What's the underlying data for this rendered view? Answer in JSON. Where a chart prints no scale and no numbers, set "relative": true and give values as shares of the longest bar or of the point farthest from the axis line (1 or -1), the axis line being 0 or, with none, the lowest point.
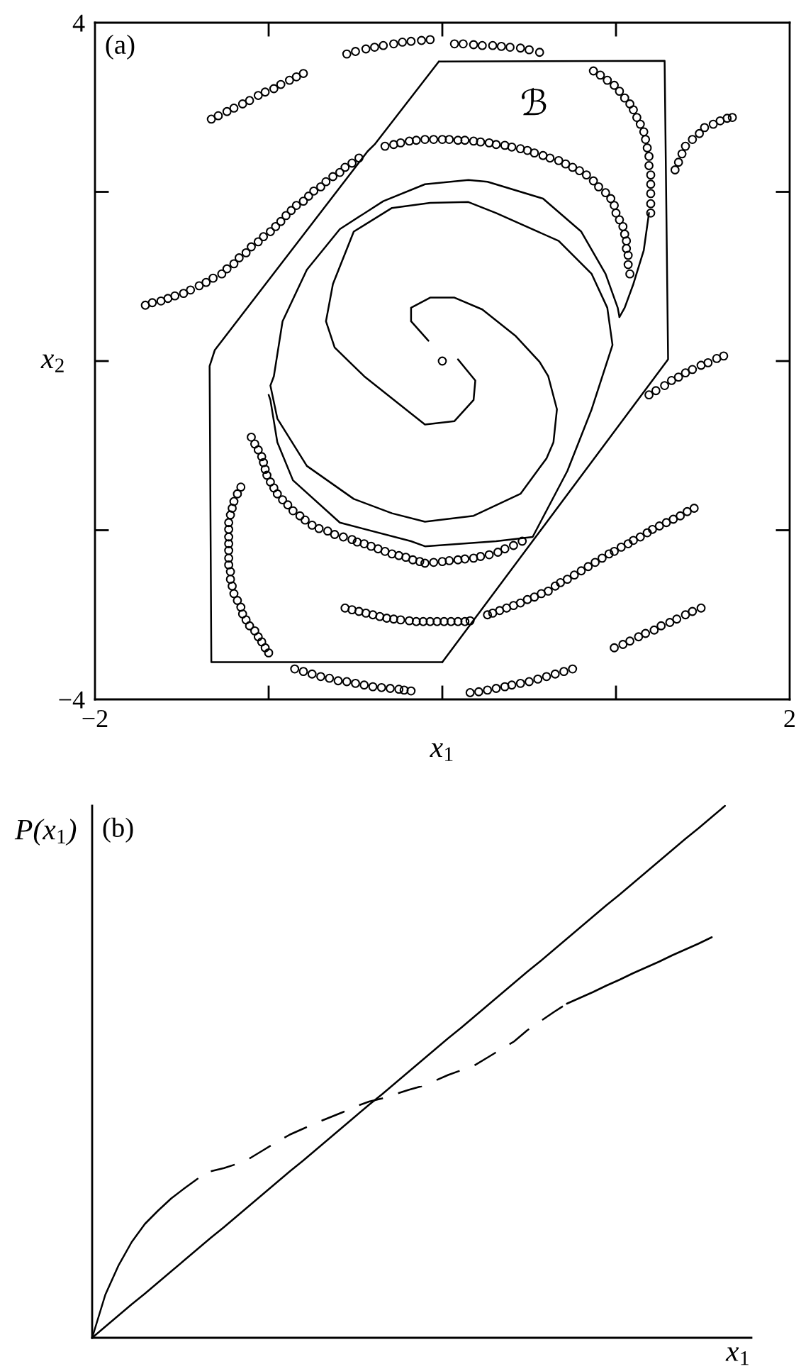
{
  "chart_data": [
    {
      "type": "line",
      "xlabel": "x$_{1}$",
      "ylabel": "x$_{2}$",
      "annotations": [
        "(a)",
        "ℬ"
      ],
      "xlim": [
        -2,
        2
      ],
      "xticks": [
        {
          "value": -2,
          "label": "−2"
        },
        {
          "value": -1,
          "label": null
        },
        {
          "value": 0,
          "label": null
        },
        {
          "value": 1,
          "label": null
        },
        2
      ],
      "ylim": [
        -4,
        4
      ],
      "yticks": [
        {
          "value": -4,
          "label": "−4"
        },
        {
          "value": -2,
          "label": null
        },
        {
          "value": 0,
          "label": null
        },
        {
          "value": 2,
          "label": null
        },
        4
      ],
      "grid": false,
      "line_style": "solid",
      "series": [
        {
          "color": "#000000",
          "x": [
            -0.02,
            1.28,
            1.3,
            0.0
          ],
          "values": [
            3.54,
            3.55,
            0.02,
            -3.56
          ]
        },
        {
          "color": "#000000",
          "x": [
            0.0,
            -1.33,
            -1.34,
            -1.31,
            -0.43,
            -0.39,
            -0.02
          ],
          "values": [
            -3.56,
            -3.56,
            -0.06,
            0.13,
            2.48,
            2.56,
            3.54
          ]
        },
        {
          "color": "#000000",
          "x": [
            -0.08,
            -0.18,
            -0.18,
            -0.07,
            0.07,
            0.23,
            0.42,
            0.56,
            0.61,
            0.66,
            0.64,
            0.6,
            0.45,
            0.18,
            -0.1,
            -0.29,
            -0.51,
            -0.78,
            -0.95,
            -0.99,
            -0.97,
            -0.92,
            -0.78,
            -0.59,
            -0.34,
            -0.1,
            0.15,
            0.26,
            0.58,
            0.8,
            0.94,
            1.01,
            1.02
          ],
          "values": [
            0.24,
            0.47,
            0.63,
            0.75,
            0.75,
            0.61,
            0.3,
            -0.01,
            -0.18,
            -0.57,
            -0.96,
            -1.15,
            -1.57,
            -1.83,
            -1.9,
            -1.8,
            -1.63,
            -1.24,
            -0.68,
            -0.29,
            -0.18,
            0.47,
            1.08,
            1.56,
            1.89,
            2.09,
            2.14,
            2.12,
            1.92,
            1.53,
            1.03,
            0.63,
            0.52
          ]
        },
        {
          "color": "#000000",
          "x": [
            0.09,
            0.19,
            0.18,
            0.07,
            -0.1,
            -0.18,
            -0.45,
            -0.62,
            -0.67,
            -0.63,
            -0.51,
            -0.29,
            -0.07,
            0.15,
            0.31,
            0.67,
            0.86,
            0.95,
            0.98,
            0.86,
            0.72,
            0.52,
            0.31,
            -0.1,
            -0.18,
            -0.59,
            -0.86,
            -0.95,
            -0.99,
            -1.0
          ],
          "values": [
            0.02,
            -0.23,
            -0.46,
            -0.71,
            -0.75,
            -0.62,
            -0.18,
            0.16,
            0.47,
            0.91,
            1.53,
            1.81,
            1.87,
            1.88,
            1.75,
            1.42,
            1.03,
            0.63,
            0.19,
            -0.57,
            -1.3,
            -2.08,
            -2.13,
            -2.19,
            -2.13,
            -1.91,
            -1.41,
            -0.96,
            -0.46,
            -0.4
          ]
        },
        {
          "color": "#000000",
          "x": [
            1.19,
            1.16,
            1.1,
            1.05,
            1.02
          ],
          "values": [
            1.75,
            1.31,
            0.91,
            0.63,
            0.52
          ]
        },
        {
          "type": "scatter",
          "marker": "circle",
          "color": "#000000",
          "x": [
            0
          ],
          "values": [
            0
          ]
        },
        {
          "type": "scatter",
          "marker": "circle",
          "color": "#000000",
          "x": [
            -1.33,
            -1.29,
            -1.24,
            -1.2,
            -1.15,
            -1.11,
            -1.06,
            -1.02,
            -0.97,
            -0.93,
            -0.88,
            -0.84,
            -0.8,
            -0.55,
            -0.5,
            -0.44,
            -0.39,
            -0.34,
            -0.28,
            -0.23,
            -0.18,
            -0.12,
            -0.07,
            0.07,
            0.12,
            0.18,
            0.23,
            0.29,
            0.34,
            0.39,
            0.45,
            0.5,
            0.56
          ],
          "values": [
            2.86,
            2.9,
            2.95,
            2.99,
            3.04,
            3.08,
            3.14,
            3.18,
            3.22,
            3.27,
            3.32,
            3.36,
            3.4,
            3.63,
            3.66,
            3.69,
            3.71,
            3.73,
            3.75,
            3.77,
            3.78,
            3.79,
            3.8,
            3.75,
            3.75,
            3.74,
            3.73,
            3.73,
            3.72,
            3.71,
            3.7,
            3.68,
            3.65
          ]
        },
        {
          "type": "scatter",
          "marker": "circle",
          "color": "#000000",
          "x": [
            -0.33,
            -0.28,
            -0.24,
            -0.19,
            -0.15,
            -0.1,
            -0.05,
            0.0,
            0.04,
            0.09,
            0.13,
            0.18,
            0.22,
            0.27,
            0.31,
            0.36,
            0.4,
            0.45,
            0.49,
            0.53,
            0.58,
            0.62,
            0.67,
            0.71,
            0.75,
            0.79,
            0.83,
            0.87,
            0.9,
            0.94,
            0.97,
            0.99,
            1.0,
            1.02,
            1.04,
            1.05,
            1.06,
            1.06,
            1.07,
            1.07,
            1.08
          ],
          "values": [
            2.54,
            2.56,
            2.58,
            2.6,
            2.61,
            2.62,
            2.62,
            2.62,
            2.62,
            2.61,
            2.61,
            2.6,
            2.59,
            2.58,
            2.56,
            2.55,
            2.53,
            2.51,
            2.49,
            2.46,
            2.43,
            2.4,
            2.37,
            2.33,
            2.29,
            2.25,
            2.2,
            2.13,
            2.06,
            1.99,
            1.92,
            1.84,
            1.75,
            1.67,
            1.59,
            1.5,
            1.42,
            1.33,
            1.25,
            1.14,
            1.03
          ]
        },
        {
          "type": "scatter",
          "marker": "circle",
          "color": "#000000",
          "x": [
            -1.71,
            -1.67,
            -1.62,
            -1.58,
            -1.54,
            -1.49,
            -1.45,
            -1.4,
            -1.36,
            -1.32,
            -1.27,
            -1.24,
            -1.2,
            -1.17,
            -1.13,
            -1.1,
            -1.06,
            -1.03,
            -0.99,
            -0.96,
            -0.93,
            -0.9,
            -0.87,
            -0.84,
            -0.8,
            -0.77,
            -0.74,
            -0.7,
            -0.67,
            -0.63,
            -0.59,
            -0.56,
            -0.52,
            -0.48
          ],
          "values": [
            0.66,
            0.69,
            0.71,
            0.74,
            0.77,
            0.8,
            0.84,
            0.89,
            0.93,
            0.98,
            1.03,
            1.09,
            1.15,
            1.22,
            1.28,
            1.35,
            1.41,
            1.47,
            1.53,
            1.59,
            1.65,
            1.72,
            1.78,
            1.84,
            1.89,
            1.95,
            2.01,
            2.06,
            2.12,
            2.18,
            2.23,
            2.29,
            2.34,
            2.4
          ]
        },
        {
          "type": "scatter",
          "marker": "circle",
          "color": "#000000",
          "x": [
            0.87,
            0.91,
            0.95,
            0.99,
            1.02,
            1.05,
            1.08,
            1.1,
            1.12,
            1.14,
            1.16,
            1.17,
            1.18,
            1.19,
            1.19,
            1.2,
            1.2,
            1.2,
            1.2,
            1.2
          ],
          "values": [
            3.43,
            3.38,
            3.32,
            3.26,
            3.19,
            3.11,
            3.04,
            2.97,
            2.88,
            2.8,
            2.71,
            2.62,
            2.52,
            2.42,
            2.31,
            2.2,
            2.09,
            1.98,
            1.86,
            1.75
          ]
        },
        {
          "type": "scatter",
          "marker": "circle",
          "color": "#000000",
          "x": [
            1.34,
            1.36,
            1.38,
            1.4,
            1.44,
            1.48,
            1.51,
            1.56,
            1.6,
            1.64,
            1.67
          ],
          "values": [
            2.26,
            2.35,
            2.45,
            2.54,
            2.62,
            2.69,
            2.76,
            2.8,
            2.84,
            2.87,
            2.88
          ]
        },
        {
          "type": "scatter",
          "marker": "circle",
          "color": "#000000",
          "x": [
            1.19,
            1.23,
            1.28,
            1.32,
            1.36,
            1.4,
            1.44,
            1.49,
            1.53,
            1.58,
            1.62
          ],
          "values": [
            -0.4,
            -0.35,
            -0.29,
            -0.23,
            -0.19,
            -0.14,
            -0.1,
            -0.05,
            -0.02,
            0.03,
            0.06
          ]
        },
        {
          "type": "scatter",
          "marker": "circle",
          "color": "#000000",
          "x": [
            -0.56,
            -0.52,
            -0.48,
            -0.44,
            -0.4,
            -0.36,
            -0.32,
            -0.28,
            -0.24,
            -0.19,
            -0.15,
            -0.11,
            -0.07,
            -0.03,
            0.01,
            0.05,
            0.09,
            0.13,
            0.16,
            0.26,
            0.29,
            0.33,
            0.37,
            0.41,
            0.45,
            0.49,
            0.53,
            0.57,
            0.61,
            0.65,
            0.68,
            0.72,
            0.76,
            0.8,
            0.84,
            0.88,
            0.92,
            0.96,
            0.99,
            1.03,
            1.07,
            1.1,
            1.14,
            1.18,
            1.21,
            1.25,
            1.29,
            1.33,
            1.37,
            1.41,
            1.45
          ],
          "values": [
            -2.92,
            -2.94,
            -2.96,
            -2.98,
            -3.0,
            -3.02,
            -3.04,
            -3.05,
            -3.06,
            -3.07,
            -3.08,
            -3.08,
            -3.08,
            -3.08,
            -3.08,
            -3.08,
            -3.08,
            -3.08,
            -3.07,
            -3.0,
            -2.98,
            -2.95,
            -2.92,
            -2.89,
            -2.86,
            -2.82,
            -2.79,
            -2.75,
            -2.72,
            -2.66,
            -2.62,
            -2.58,
            -2.53,
            -2.48,
            -2.43,
            -2.38,
            -2.33,
            -2.28,
            -2.25,
            -2.2,
            -2.16,
            -2.12,
            -2.08,
            -2.03,
            -1.99,
            -1.95,
            -1.91,
            -1.87,
            -1.83,
            -1.78,
            -1.74
          ]
        },
        {
          "type": "scatter",
          "marker": "circle",
          "color": "#000000",
          "x": [
            -1.1,
            -1.08,
            -1.06,
            -1.04,
            -1.03,
            -1.02,
            -1.01,
            -0.99,
            -0.97,
            -0.95,
            -0.92,
            -0.89,
            -0.86,
            -0.82,
            -0.79,
            -0.75,
            -0.71,
            -0.66,
            -0.62,
            -0.57,
            -0.52,
            -0.49,
            -0.45,
            -0.41,
            -0.37,
            -0.33,
            -0.29,
            -0.25,
            -0.21,
            -0.17,
            -0.13,
            -0.1,
            -0.05,
            0.0,
            0.04,
            0.09,
            0.13,
            0.18,
            0.22,
            0.27,
            0.32,
            0.36,
            0.41,
            0.46
          ],
          "values": [
            -0.9,
            -0.98,
            -1.05,
            -1.13,
            -1.2,
            -1.28,
            -1.35,
            -1.43,
            -1.5,
            -1.57,
            -1.64,
            -1.7,
            -1.77,
            -1.83,
            -1.88,
            -1.94,
            -1.98,
            -2.01,
            -2.05,
            -2.08,
            -2.11,
            -2.14,
            -2.16,
            -2.19,
            -2.22,
            -2.25,
            -2.28,
            -2.3,
            -2.32,
            -2.35,
            -2.37,
            -2.39,
            -2.38,
            -2.37,
            -2.36,
            -2.35,
            -2.34,
            -2.33,
            -2.31,
            -2.29,
            -2.26,
            -2.22,
            -2.18,
            -2.13
          ]
        },
        {
          "type": "scatter",
          "marker": "circle",
          "color": "#000000",
          "x": [
            -1.16,
            -1.18,
            -1.2,
            -1.21,
            -1.22,
            -1.23,
            -1.23,
            -1.23,
            -1.23,
            -1.23,
            -1.23,
            -1.23,
            -1.22,
            -1.22,
            -1.21,
            -1.2,
            -1.18,
            -1.16,
            -1.15,
            -1.13,
            -1.11,
            -1.08,
            -1.06,
            -1.04,
            -1.02,
            -1.0
          ],
          "values": [
            -1.49,
            -1.57,
            -1.66,
            -1.74,
            -1.82,
            -1.91,
            -1.99,
            -2.08,
            -2.16,
            -2.24,
            -2.33,
            -2.41,
            -2.49,
            -2.58,
            -2.66,
            -2.75,
            -2.83,
            -2.91,
            -2.99,
            -3.06,
            -3.13,
            -3.19,
            -3.26,
            -3.32,
            -3.39,
            -3.45
          ]
        },
        {
          "type": "scatter",
          "marker": "circle",
          "color": "#000000",
          "x": [
            -0.85,
            -0.8,
            -0.75,
            -0.7,
            -0.65,
            -0.6,
            -0.55,
            -0.5,
            -0.45,
            -0.4,
            -0.35,
            -0.3,
            -0.25,
            -0.22,
            -0.18,
            0.16,
            0.21,
            0.26,
            0.31,
            0.36,
            0.4,
            0.45,
            0.5,
            0.55,
            0.6,
            0.65,
            0.7,
            0.75
          ],
          "values": [
            -3.64,
            -3.67,
            -3.7,
            -3.73,
            -3.75,
            -3.78,
            -3.79,
            -3.81,
            -3.83,
            -3.85,
            -3.86,
            -3.87,
            -3.88,
            -3.89,
            -3.9,
            -3.92,
            -3.91,
            -3.89,
            -3.87,
            -3.85,
            -3.83,
            -3.81,
            -3.79,
            -3.76,
            -3.73,
            -3.7,
            -3.67,
            -3.64
          ]
        },
        {
          "type": "scatter",
          "marker": "circle",
          "color": "#000000",
          "x": [
            0.99,
            1.04,
            1.08,
            1.13,
            1.17,
            1.22,
            1.26,
            1.31,
            1.35,
            1.4,
            1.44,
            1.49
          ],
          "values": [
            -3.39,
            -3.35,
            -3.31,
            -3.26,
            -3.22,
            -3.18,
            -3.13,
            -3.09,
            -3.05,
            -3.0,
            -2.96,
            -2.92
          ]
        }
      ]
    },
    {
      "type": "line",
      "relative": true,
      "xlabel": "x$_{1}$",
      "ylabel": "P(x$_{1}$)",
      "annotations": [
        "(b)"
      ],
      "grid": false,
      "line_style": "solid",
      "categories": [
        null,
        null,
        null,
        null,
        null,
        null,
        null,
        null,
        null,
        null,
        null,
        null,
        null,
        null,
        null,
        null,
        null,
        null,
        null,
        null,
        null,
        null,
        null,
        null,
        null,
        null,
        null,
        null,
        null,
        null,
        null,
        null,
        null,
        null,
        null,
        null,
        null,
        null,
        null,
        null,
        null,
        null,
        null,
        null,
        null,
        null,
        null,
        null,
        null,
        null,
        null
      ],
      "series": [
        {
          "color": "#000000",
          "values": [
            0,
            0.021,
            0.042,
            0.063,
            0.083,
            0.104,
            0.125,
            0.146,
            0.167,
            0.188,
            0.208,
            0.229,
            0.25,
            0.271,
            0.292,
            0.313,
            0.333,
            0.354,
            0.375,
            0.396,
            0.417,
            0.438,
            0.458,
            0.479,
            0.5,
            0.521,
            0.542,
            0.563,
            0.583,
            0.604,
            0.625,
            0.646,
            0.667,
            0.688,
            0.708,
            0.729,
            0.75,
            0.771,
            0.792,
            0.813,
            0.833,
            0.854,
            0.875,
            0.896,
            0.917,
            0.938,
            0.958,
            0.979,
            1.0,
            null,
            null
          ]
        },
        {
          "color": "#000000",
          "values": [
            0,
            0.081,
            0.136,
            0.18,
            0.214,
            0.239,
            0.262,
            0.281,
            0.299,
            null,
            null,
            null,
            null,
            null,
            null,
            null,
            null,
            null,
            null,
            null,
            null,
            null,
            null,
            null,
            null,
            null,
            null,
            null,
            null,
            null,
            null,
            null,
            null,
            null,
            null,
            null,
            null,
            null,
            null,
            null,
            null,
            null,
            null,
            null,
            null,
            null,
            null,
            null,
            null,
            null,
            null
          ]
        },
        {
          "color": "#000000",
          "line_style": "dashed",
          "values": [
            null,
            null,
            null,
            null,
            null,
            null,
            null,
            null,
            null,
            0.313,
            0.319,
            0.327,
            0.338,
            0.353,
            0.368,
            0.382,
            0.393,
            0.404,
            0.414,
            0.424,
            0.435,
            0.444,
            0.45,
            0.458,
            0.466,
            0.473,
            0.483,
            0.494,
            0.503,
            0.512,
            0.527,
            0.542,
            0.557,
            0.578,
            0.595,
            0.612,
            0.628,
            null,
            null,
            null,
            null,
            null,
            null,
            null,
            null,
            null,
            null,
            null,
            null,
            null,
            null
          ]
        },
        {
          "color": "#000000",
          "values": [
            null,
            null,
            null,
            null,
            null,
            null,
            null,
            null,
            null,
            null,
            null,
            null,
            null,
            null,
            null,
            null,
            null,
            null,
            null,
            null,
            null,
            null,
            null,
            null,
            null,
            null,
            null,
            null,
            null,
            null,
            null,
            null,
            null,
            null,
            null,
            null,
            0.628,
            0.639,
            0.65,
            0.662,
            0.673,
            0.685,
            0.696,
            0.707,
            0.719,
            0.73,
            0.741,
            0.753,
            null,
            null,
            null
          ]
        }
      ]
    }
  ]
}
